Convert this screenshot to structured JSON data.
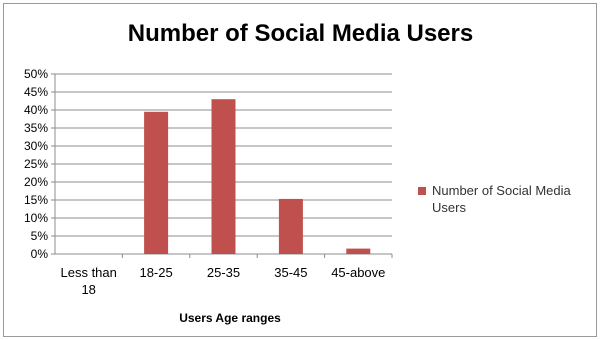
{
  "chart_data": {
    "type": "bar",
    "title": "Number of Social Media Users",
    "xlabel": "Users Age ranges",
    "ylabel": "",
    "categories": [
      "Less than 18",
      "18-25",
      "25-35",
      "35-45",
      "45-above"
    ],
    "series": [
      {
        "name": "Number of Social Media Users",
        "values": [
          0,
          39.5,
          43,
          15.3,
          1.5
        ],
        "color": "#c0504d"
      }
    ],
    "ylim": [
      0,
      50
    ],
    "yticks": [
      "0%",
      "5%",
      "10%",
      "15%",
      "20%",
      "25%",
      "30%",
      "35%",
      "40%",
      "45%",
      "50%"
    ],
    "ytick_values": [
      0,
      5,
      10,
      15,
      20,
      25,
      30,
      35,
      40,
      45,
      50
    ],
    "grid": true,
    "legend_position": "right"
  }
}
